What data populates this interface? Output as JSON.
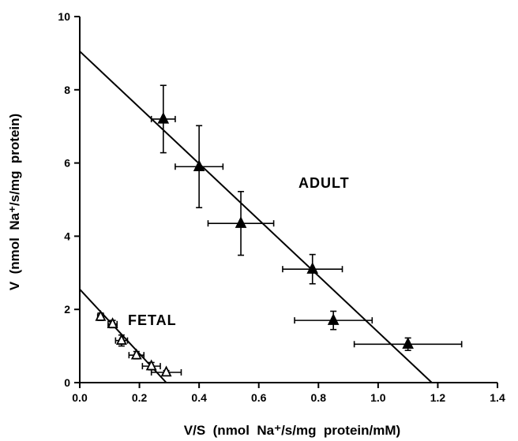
{
  "chart_data": {
    "type": "scatter",
    "xlabel": "V/S  (nmol  Na⁺/s/mg  protein/mM)",
    "ylabel": "V  (nmol  Na⁺/s/mg  protein)",
    "xlim": [
      0,
      1.4
    ],
    "ylim": [
      0,
      10
    ],
    "x_ticks": [
      "0.0",
      "0.2",
      "0.4",
      "0.6",
      "0.8",
      "1.0",
      "1.2",
      "1.4"
    ],
    "y_ticks": [
      "0",
      "2",
      "4",
      "6",
      "8",
      "10"
    ],
    "grid": false,
    "annotations": {
      "adult": "ADULT",
      "fetal": "FETAL"
    },
    "series": [
      {
        "marker": "filled-triangle",
        "points": [
          {
            "x": 0.28,
            "y": 7.2,
            "xerr": 0.04,
            "yerr": 0.92
          },
          {
            "x": 0.4,
            "y": 5.9,
            "xerr": 0.08,
            "yerr": 1.12
          },
          {
            "x": 0.54,
            "y": 4.35,
            "xerr": 0.11,
            "yerr": 0.87
          },
          {
            "x": 0.78,
            "y": 3.1,
            "xerr": 0.1,
            "yerr": 0.4
          },
          {
            "x": 0.85,
            "y": 1.7,
            "xerr": 0.13,
            "yerr": 0.25
          },
          {
            "x": 1.1,
            "y": 1.05,
            "xerr": 0.18,
            "yerr": 0.17
          }
        ],
        "fit": {
          "x0": 0.0,
          "y0": 9.05,
          "x1": 1.18,
          "y1": 0.0
        }
      },
      {
        "marker": "open-triangle",
        "points": [
          {
            "x": 0.07,
            "y": 1.8,
            "xerr": 0.01,
            "yerr": 0.1
          },
          {
            "x": 0.11,
            "y": 1.6,
            "xerr": 0.015,
            "yerr": 0.1
          },
          {
            "x": 0.14,
            "y": 1.15,
            "xerr": 0.02,
            "yerr": 0.15
          },
          {
            "x": 0.19,
            "y": 0.75,
            "xerr": 0.025,
            "yerr": 0.1
          },
          {
            "x": 0.24,
            "y": 0.45,
            "xerr": 0.03,
            "yerr": 0.1
          },
          {
            "x": 0.29,
            "y": 0.28,
            "xerr": 0.05,
            "yerr": 0.05
          }
        ],
        "fit": {
          "x0": 0.0,
          "y0": 2.55,
          "x1": 0.29,
          "y1": 0.0
        }
      }
    ]
  }
}
